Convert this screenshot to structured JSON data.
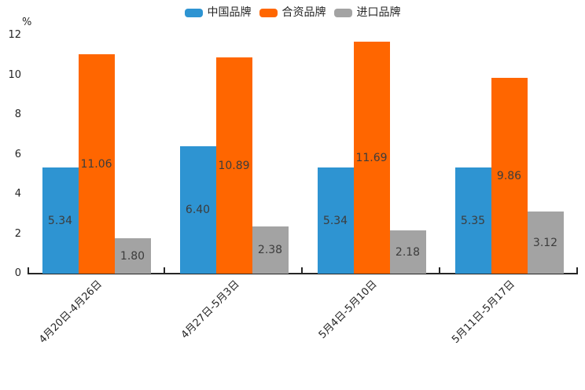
{
  "chart_data": {
    "type": "bar",
    "title": "",
    "ylabel": "%",
    "xlabel": "",
    "categories": [
      "4月20日-4月26日",
      "4月27日-5月3日",
      "5月4日-5月10日",
      "5月11日-5月17日"
    ],
    "series": [
      {
        "key": "china-brand",
        "name": "中国品牌",
        "color": "#2e94d2",
        "values": [
          5.34,
          6.4,
          5.34,
          5.35
        ]
      },
      {
        "key": "joint-venture-brand",
        "name": "合资品牌",
        "color": "#ff6600",
        "values": [
          11.06,
          10.89,
          11.69,
          9.86
        ]
      },
      {
        "key": "import-brand",
        "name": "进口品牌",
        "color": "#a3a3a3",
        "values": [
          1.8,
          2.38,
          2.18,
          3.12
        ]
      }
    ],
    "value_labels": [
      [
        "5.34",
        "6.40",
        "5.34",
        "5.35"
      ],
      [
        "11.06",
        "10.89",
        "11.69",
        "9.86"
      ],
      [
        "1.80",
        "2.38",
        "2.18",
        "3.12"
      ]
    ],
    "yticks": [
      "0",
      "2",
      "4",
      "6",
      "8",
      "10",
      "12"
    ],
    "ylim": [
      0,
      12
    ],
    "grid": false,
    "legend_position": "top-center",
    "bar_label_position": "center-inside"
  },
  "colors": {
    "axis": "#262626",
    "tick_text": "#262626",
    "bar_label_text": "#3c3c3c",
    "background": "#ffffff"
  }
}
